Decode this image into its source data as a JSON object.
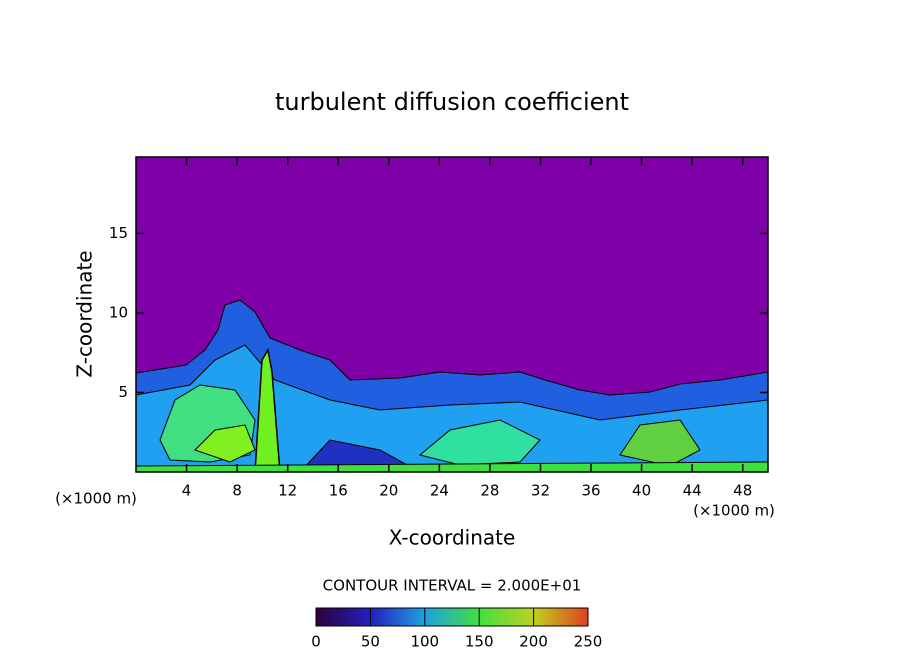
{
  "chart_data": {
    "type": "contour",
    "title": "turbulent diffusion coefficient",
    "xlabel": "X-coordinate",
    "ylabel": "Z-coordinate",
    "x_unit": "(×1000 m)",
    "xlim": [
      0,
      50
    ],
    "xticks": [
      4,
      8,
      12,
      16,
      20,
      24,
      28,
      32,
      36,
      40,
      44,
      48
    ],
    "ylim": [
      0,
      19.8
    ],
    "yticks": [
      5,
      10,
      15
    ],
    "background_color": "#8000a8",
    "annotation": "CONTOUR INTERVAL = 2.000E+01",
    "colorbar": {
      "lim": [
        0,
        250
      ],
      "ticks": [
        0,
        50,
        100,
        150,
        200,
        250
      ],
      "colors": [
        "#30003a",
        "#2020c0",
        "#20a0e0",
        "#40e040",
        "#c0d020",
        "#e04020"
      ]
    }
  }
}
